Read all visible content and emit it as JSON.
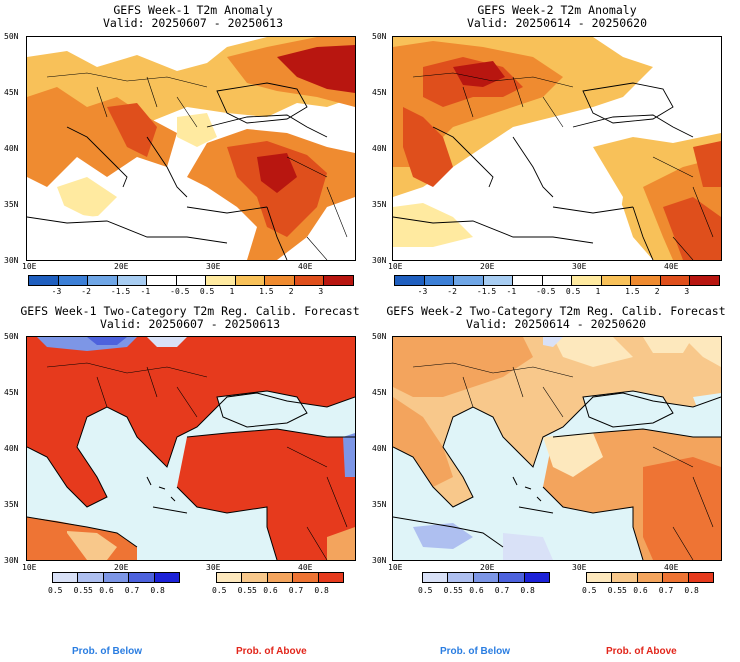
{
  "panels": {
    "tl": {
      "title1": "GEFS Week-1 T2m Anomaly",
      "title2": "Valid: 20250607 - 20250613"
    },
    "tr": {
      "title1": "GEFS Week-2 T2m Anomaly",
      "title2": "Valid: 20250614 - 20250620"
    },
    "bl": {
      "title1": "GEFS Week-1 Two-Category T2m Reg. Calib. Forecast",
      "title2": "Valid: 20250607 - 20250613"
    },
    "br": {
      "title1": "GEFS Week-2 Two-Category T2m Reg. Calib. Forecast",
      "title2": "Valid: 20250614 - 20250620"
    }
  },
  "axes": {
    "lat_labels": [
      "50N",
      "45N",
      "40N",
      "35N",
      "30N"
    ],
    "lon_labels": [
      "10E",
      "20E",
      "30E",
      "40E"
    ]
  },
  "anomaly_colorbar": {
    "labels": [
      "-3",
      "-2",
      "-1.5",
      "-1",
      "-0.5",
      "0.5",
      "1",
      "1.5",
      "2",
      "3"
    ],
    "colors": [
      "#1f5fbf",
      "#3c7fd6",
      "#6fa6e6",
      "#a8cdf2",
      "#ffffff",
      "#ffffff",
      "#ffeaa0",
      "#f8c159",
      "#ef8b30",
      "#df4f1c",
      "#b81610"
    ]
  },
  "prob_below": {
    "labels": [
      "0.5",
      "0.55",
      "0.6",
      "0.7",
      "0.8"
    ],
    "colors": [
      "#d9e1f7",
      "#aebff0",
      "#7d96e6",
      "#4d62dd",
      "#1c22d8"
    ],
    "caption": "Prob. of Below",
    "caption_color": "#2a7de1"
  },
  "prob_above": {
    "labels": [
      "0.5",
      "0.55",
      "0.6",
      "0.7",
      "0.8"
    ],
    "colors": [
      "#fde8bd",
      "#f8c88b",
      "#f3a45d",
      "#ee7434",
      "#e63a1d"
    ],
    "caption": "Prob. of Above",
    "caption_color": "#e2261b"
  },
  "colors": {
    "sea": "#dff4f8",
    "land_white": "#ffffff"
  }
}
